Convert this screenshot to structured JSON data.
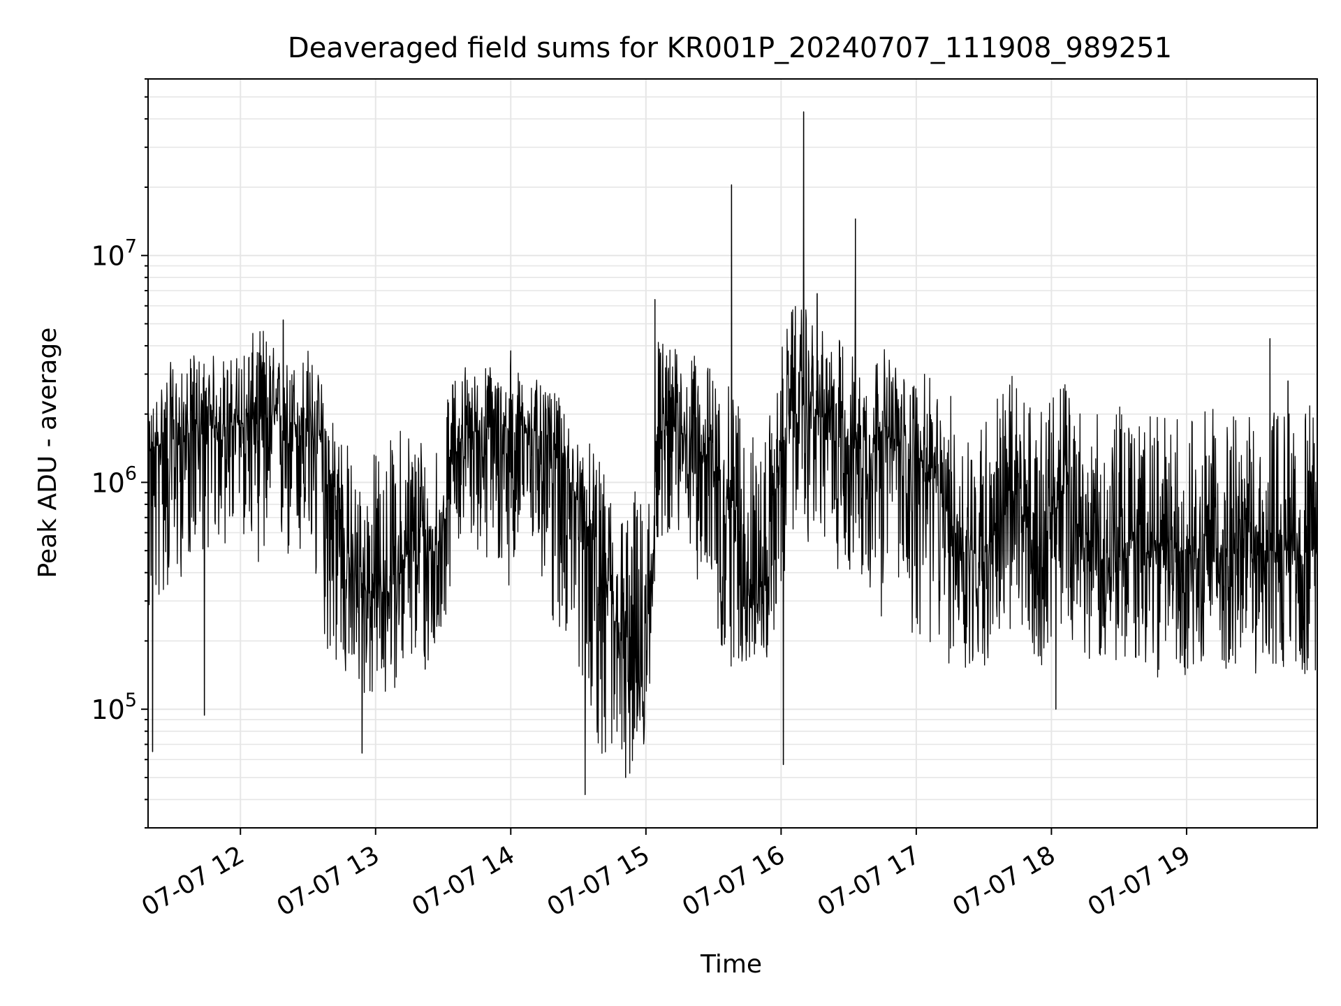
{
  "chart_data": {
    "type": "line",
    "title": "Deaveraged field sums for KR001P_20240707_111908_989251",
    "xlabel": "Time",
    "ylabel": "Peak ADU - average",
    "yscale": "log",
    "ylim": [
      30000,
      60000000
    ],
    "xlim": [
      "2024-07-07 11:19",
      "2024-07-07 19:58"
    ],
    "x_ticks": [
      {
        "time": "2024-07-07 12:00",
        "label": "07-07 12"
      },
      {
        "time": "2024-07-07 13:00",
        "label": "07-07 13"
      },
      {
        "time": "2024-07-07 14:00",
        "label": "07-07 14"
      },
      {
        "time": "2024-07-07 15:00",
        "label": "07-07 15"
      },
      {
        "time": "2024-07-07 16:00",
        "label": "07-07 16"
      },
      {
        "time": "2024-07-07 17:00",
        "label": "07-07 17"
      },
      {
        "time": "2024-07-07 18:00",
        "label": "07-07 18"
      },
      {
        "time": "2024-07-07 19:00",
        "label": "07-07 19"
      }
    ],
    "y_ticks": [
      {
        "value": 100000,
        "base": "10",
        "exp": "5"
      },
      {
        "value": 1000000,
        "base": "10",
        "exp": "6"
      },
      {
        "value": 10000000,
        "base": "10",
        "exp": "7"
      }
    ],
    "grid": true,
    "line_color": "#000000",
    "series": [
      {
        "x": [
          "2024-07-07 11:19",
          "2024-07-07 11:25",
          "2024-07-07 11:30",
          "2024-07-07 11:35",
          "2024-07-07 11:40",
          "2024-07-07 11:45",
          "2024-07-07 11:50",
          "2024-07-07 11:55",
          "2024-07-07 12:00",
          "2024-07-07 12:05",
          "2024-07-07 12:10",
          "2024-07-07 12:15",
          "2024-07-07 12:20",
          "2024-07-07 12:25",
          "2024-07-07 12:30",
          "2024-07-07 12:35",
          "2024-07-07 12:40",
          "2024-07-07 12:45",
          "2024-07-07 12:50",
          "2024-07-07 12:55",
          "2024-07-07 13:00",
          "2024-07-07 13:05",
          "2024-07-07 13:10",
          "2024-07-07 13:15",
          "2024-07-07 13:20",
          "2024-07-07 13:25",
          "2024-07-07 13:30",
          "2024-07-07 13:35",
          "2024-07-07 13:40",
          "2024-07-07 13:45",
          "2024-07-07 13:50",
          "2024-07-07 13:55",
          "2024-07-07 14:00",
          "2024-07-07 14:05",
          "2024-07-07 14:10",
          "2024-07-07 14:15",
          "2024-07-07 14:20",
          "2024-07-07 14:25",
          "2024-07-07 14:30",
          "2024-07-07 14:35",
          "2024-07-07 14:40",
          "2024-07-07 14:45",
          "2024-07-07 14:50",
          "2024-07-07 14:55",
          "2024-07-07 15:00",
          "2024-07-07 15:05",
          "2024-07-07 15:10",
          "2024-07-07 15:15",
          "2024-07-07 15:20",
          "2024-07-07 15:25",
          "2024-07-07 15:30",
          "2024-07-07 15:35",
          "2024-07-07 15:40",
          "2024-07-07 15:45",
          "2024-07-07 15:50",
          "2024-07-07 15:55",
          "2024-07-07 16:00",
          "2024-07-07 16:05",
          "2024-07-07 16:10",
          "2024-07-07 16:15",
          "2024-07-07 16:20",
          "2024-07-07 16:25",
          "2024-07-07 16:30",
          "2024-07-07 16:35",
          "2024-07-07 16:40",
          "2024-07-07 16:45",
          "2024-07-07 16:50",
          "2024-07-07 16:55",
          "2024-07-07 17:00",
          "2024-07-07 17:05",
          "2024-07-07 17:10",
          "2024-07-07 17:15",
          "2024-07-07 17:20",
          "2024-07-07 17:25",
          "2024-07-07 17:30",
          "2024-07-07 17:35",
          "2024-07-07 17:40",
          "2024-07-07 17:45",
          "2024-07-07 17:50",
          "2024-07-07 17:55",
          "2024-07-07 18:00",
          "2024-07-07 18:05",
          "2024-07-07 18:10",
          "2024-07-07 18:15",
          "2024-07-07 18:20",
          "2024-07-07 18:25",
          "2024-07-07 18:30",
          "2024-07-07 18:35",
          "2024-07-07 18:40",
          "2024-07-07 18:45",
          "2024-07-07 18:50",
          "2024-07-07 18:55",
          "2024-07-07 19:00",
          "2024-07-07 19:05",
          "2024-07-07 19:10",
          "2024-07-07 19:15",
          "2024-07-07 19:20",
          "2024-07-07 19:25",
          "2024-07-07 19:30",
          "2024-07-07 19:35",
          "2024-07-07 19:40",
          "2024-07-07 19:45",
          "2024-07-07 19:50",
          "2024-07-07 19:55"
        ],
        "center": [
          1300000,
          1500000,
          1500000,
          1600000,
          1700000,
          1700000,
          1800000,
          1800000,
          1800000,
          1900000,
          1900000,
          1900000,
          1800000,
          1800000,
          1800000,
          1600000,
          800000,
          600000,
          400000,
          350000,
          300000,
          350000,
          400000,
          500000,
          500000,
          500000,
          600000,
          1500000,
          1600000,
          1700000,
          1600000,
          1500000,
          1600000,
          1700000,
          1700000,
          1600000,
          1400000,
          1100000,
          800000,
          600000,
          400000,
          250000,
          180000,
          160000,
          150000,
          1500000,
          1800000,
          1700000,
          1600000,
          1300000,
          1300000,
          900000,
          700000,
          400000,
          300000,
          400000,
          1500000,
          2000000,
          2200000,
          2000000,
          1900000,
          1700000,
          1600000,
          1500000,
          1500000,
          1700000,
          1500000,
          1300000,
          1300000,
          1200000,
          900000,
          700000,
          500000,
          500000,
          500000,
          600000,
          800000,
          800000,
          600000,
          500000,
          700000,
          900000,
          700000,
          500000,
          500000,
          400000,
          500000,
          550000,
          500000,
          500000,
          500000,
          500000,
          500000,
          500000,
          500000,
          500000,
          500000,
          500000,
          500000,
          500000,
          500000,
          500000,
          500000,
          500000
        ],
        "low": [
          200000,
          300000,
          300000,
          400000,
          500000,
          500000,
          500000,
          500000,
          600000,
          500000,
          400000,
          500000,
          400000,
          400000,
          400000,
          250000,
          150000,
          140000,
          100000,
          110000,
          100000,
          110000,
          130000,
          150000,
          140000,
          140000,
          200000,
          500000,
          600000,
          500000,
          400000,
          350000,
          350000,
          400000,
          450000,
          300000,
          200000,
          200000,
          150000,
          100000,
          60000,
          50000,
          50000,
          50000,
          60000,
          500000,
          600000,
          500000,
          400000,
          350000,
          200000,
          150000,
          150000,
          150000,
          180000,
          150000,
          300000,
          600000,
          500000,
          600000,
          500000,
          400000,
          400000,
          300000,
          300000,
          250000,
          250000,
          200000,
          200000,
          180000,
          160000,
          150000,
          140000,
          130000,
          150000,
          180000,
          200000,
          200000,
          150000,
          150000,
          200000,
          220000,
          200000,
          160000,
          180000,
          150000,
          160000,
          150000,
          140000,
          130000,
          150000,
          150000,
          140000,
          150000,
          150000,
          140000,
          150000,
          150000,
          140000,
          150000,
          140000,
          150000,
          140000,
          140000
        ],
        "high": [
          2000000,
          3000000,
          3500000,
          3000000,
          4000000,
          3500000,
          3800000,
          3500000,
          4000000,
          4500000,
          5000000,
          4000000,
          3500000,
          3500000,
          4000000,
          3000000,
          2500000,
          2000000,
          1200000,
          1000000,
          1500000,
          1500000,
          1800000,
          2000000,
          1800000,
          1500000,
          2000000,
          3000000,
          3500000,
          3000000,
          3500000,
          3200000,
          3500000,
          3000000,
          3000000,
          2500000,
          2500000,
          2000000,
          1500000,
          1500000,
          1200000,
          1000000,
          800000,
          1000000,
          800000,
          5000000,
          4000000,
          4000000,
          3500000,
          4000000,
          3000000,
          2500000,
          3000000,
          2000000,
          1500000,
          2000000,
          4000000,
          6000000,
          6000000,
          5000000,
          4500000,
          4500000,
          4000000,
          3500000,
          3500000,
          4000000,
          3500000,
          3000000,
          3000000,
          3000000,
          2500000,
          2500000,
          2000000,
          2000000,
          2000000,
          2500000,
          3000000,
          3000000,
          2500000,
          2000000,
          2500000,
          3000000,
          2500000,
          2000000,
          2000000,
          2000000,
          2200000,
          2000000,
          2000000,
          2000000,
          2000000,
          2000000,
          2000000,
          2000000,
          2200000,
          2000000,
          2000000,
          2000000,
          2000000,
          2000000,
          2200000,
          2200000,
          2200000,
          2200000
        ]
      }
    ],
    "spikes": [
      {
        "time": "2024-07-07 11:21",
        "value": 65000
      },
      {
        "time": "2024-07-07 11:44",
        "value": 94000
      },
      {
        "time": "2024-07-07 12:19",
        "value": 5200000
      },
      {
        "time": "2024-07-07 12:54",
        "value": 64000
      },
      {
        "time": "2024-07-07 13:22",
        "value": 150000
      },
      {
        "time": "2024-07-07 14:00",
        "value": 3800000
      },
      {
        "time": "2024-07-07 14:33",
        "value": 42000
      },
      {
        "time": "2024-07-07 14:51",
        "value": 50000
      },
      {
        "time": "2024-07-07 15:04",
        "value": 6400000
      },
      {
        "time": "2024-07-07 15:38",
        "value": 20500000
      },
      {
        "time": "2024-07-07 16:01",
        "value": 57000
      },
      {
        "time": "2024-07-07 16:10",
        "value": 43000000
      },
      {
        "time": "2024-07-07 16:16",
        "value": 6800000
      },
      {
        "time": "2024-07-07 16:33",
        "value": 14500000
      },
      {
        "time": "2024-07-07 18:02",
        "value": 100000
      },
      {
        "time": "2024-07-07 19:37",
        "value": 4300000
      },
      {
        "time": "2024-07-07 19:45",
        "value": 2800000
      }
    ]
  }
}
